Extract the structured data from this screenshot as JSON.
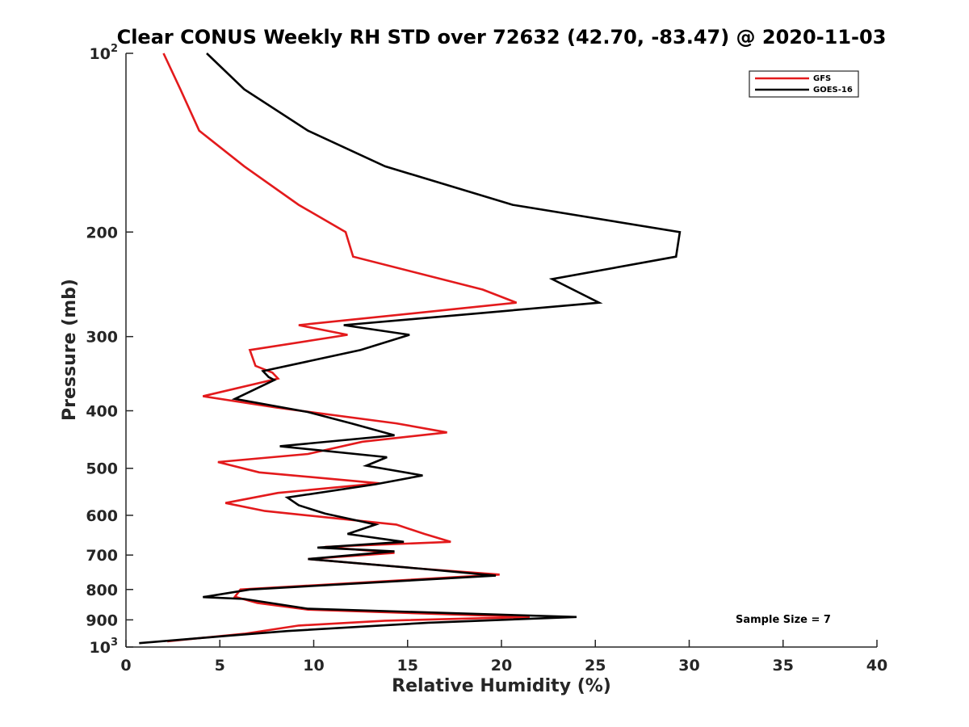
{
  "chart_data": {
    "type": "line",
    "title": "Clear CONUS Weekly RH STD over 72632 (42.70, -83.47) @ 2020-11-03",
    "xlabel": "Relative Humidity (%)",
    "ylabel": "Pressure (mb)",
    "xlim": [
      0,
      40
    ],
    "ylim": [
      100,
      1000
    ],
    "y_scale": "log",
    "y_reversed": true,
    "grid": false,
    "legend_placement": "top-right",
    "x_ticks": [
      "0",
      "5",
      "10",
      "15",
      "20",
      "25",
      "30",
      "35",
      "40"
    ],
    "y_ticks": [
      {
        "value": 100,
        "base": "10",
        "exp": "2"
      },
      {
        "value": 200,
        "label": "200"
      },
      {
        "value": 300,
        "label": "300"
      },
      {
        "value": 400,
        "label": "400"
      },
      {
        "value": 500,
        "label": "500"
      },
      {
        "value": 600,
        "label": "600"
      },
      {
        "value": 700,
        "label": "700"
      },
      {
        "value": 800,
        "label": "800"
      },
      {
        "value": 900,
        "label": "900"
      },
      {
        "value": 1000,
        "base": "10",
        "exp": "3"
      }
    ],
    "annotation": "Sample Size = 7",
    "series": [
      {
        "name": "GFS",
        "color": "#e31a1c",
        "points": [
          [
            2.0,
            100
          ],
          [
            2.9,
            115
          ],
          [
            3.9,
            135
          ],
          [
            6.3,
            155
          ],
          [
            9.2,
            180
          ],
          [
            11.7,
            200
          ],
          [
            12.1,
            220
          ],
          [
            19.0,
            250
          ],
          [
            20.8,
            263
          ],
          [
            9.2,
            287
          ],
          [
            11.8,
            298
          ],
          [
            6.6,
            316
          ],
          [
            6.9,
            336
          ],
          [
            7.8,
            345
          ],
          [
            8.1,
            353
          ],
          [
            4.1,
            378
          ],
          [
            8.0,
            395
          ],
          [
            14.4,
            420
          ],
          [
            17.1,
            435
          ],
          [
            12.6,
            451
          ],
          [
            9.7,
            473
          ],
          [
            4.9,
            488
          ],
          [
            7.1,
            508
          ],
          [
            13.5,
            530
          ],
          [
            8.1,
            550
          ],
          [
            5.3,
            572
          ],
          [
            7.4,
            590
          ],
          [
            14.4,
            622
          ],
          [
            15.9,
            645
          ],
          [
            17.3,
            665
          ],
          [
            10.6,
            678
          ],
          [
            14.3,
            694
          ],
          [
            9.7,
            711
          ],
          [
            15.7,
            738
          ],
          [
            19.9,
            755
          ],
          [
            6.1,
            800
          ],
          [
            5.8,
            823
          ],
          [
            7.0,
            843
          ],
          [
            9.7,
            865
          ],
          [
            21.5,
            890
          ],
          [
            13.8,
            903
          ],
          [
            9.2,
            920
          ],
          [
            6.3,
            950
          ],
          [
            2.2,
            978
          ]
        ]
      },
      {
        "name": "GOES-16",
        "color": "#000000",
        "points": [
          [
            4.3,
            100
          ],
          [
            6.3,
            115
          ],
          [
            9.7,
            135
          ],
          [
            13.8,
            155
          ],
          [
            20.6,
            180
          ],
          [
            29.5,
            200
          ],
          [
            29.3,
            220
          ],
          [
            22.7,
            240
          ],
          [
            25.2,
            263
          ],
          [
            11.6,
            287
          ],
          [
            15.1,
            298
          ],
          [
            12.5,
            316
          ],
          [
            7.3,
            343
          ],
          [
            7.6,
            351
          ],
          [
            7.9,
            355
          ],
          [
            5.8,
            382
          ],
          [
            9.7,
            402
          ],
          [
            12.0,
            420
          ],
          [
            14.3,
            440
          ],
          [
            8.2,
            459
          ],
          [
            13.9,
            479
          ],
          [
            12.8,
            495
          ],
          [
            15.8,
            514
          ],
          [
            13.3,
            532
          ],
          [
            8.6,
            560
          ],
          [
            9.2,
            577
          ],
          [
            10.6,
            596
          ],
          [
            13.3,
            622
          ],
          [
            11.8,
            645
          ],
          [
            14.8,
            665
          ],
          [
            10.2,
            680
          ],
          [
            14.3,
            690
          ],
          [
            9.7,
            711
          ],
          [
            15.7,
            738
          ],
          [
            19.7,
            758
          ],
          [
            6.6,
            800
          ],
          [
            4.1,
            824
          ],
          [
            6.3,
            830
          ],
          [
            9.7,
            862
          ],
          [
            24.0,
            890
          ],
          [
            16.1,
            910
          ],
          [
            8.6,
            940
          ],
          [
            5.3,
            958
          ],
          [
            0.7,
            985
          ]
        ]
      }
    ]
  }
}
